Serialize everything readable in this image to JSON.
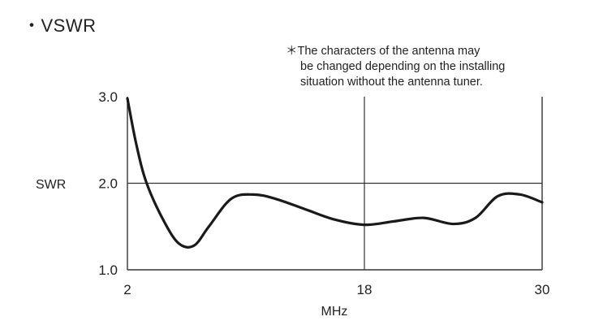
{
  "title": "・VSWR",
  "note": [
    "＊The characters of the antenna may",
    "be changed depending on the installing",
    "situation without the antenna tuner."
  ],
  "chart_data": {
    "type": "line",
    "title": "・VSWR",
    "xlabel": "MHz",
    "ylabel": "SWR",
    "x_ticks": [
      "2",
      "18",
      "30"
    ],
    "y_ticks": [
      "1.0",
      "2.0",
      "3.0"
    ],
    "xlim": [
      2,
      30
    ],
    "ylim": [
      1.0,
      3.0
    ],
    "grid": true,
    "series": [
      {
        "x": [
          2,
          2.6,
          3.3,
          4.5,
          5.5,
          6.5,
          7.5,
          9,
          10.5,
          12,
          14,
          16,
          18,
          20,
          22,
          24,
          25.5,
          27,
          28.5,
          30
        ],
        "y": [
          2.98,
          2.45,
          2.0,
          1.55,
          1.3,
          1.28,
          1.5,
          1.82,
          1.87,
          1.82,
          1.7,
          1.58,
          1.52,
          1.56,
          1.6,
          1.53,
          1.6,
          1.85,
          1.87,
          1.78
        ]
      }
    ]
  }
}
